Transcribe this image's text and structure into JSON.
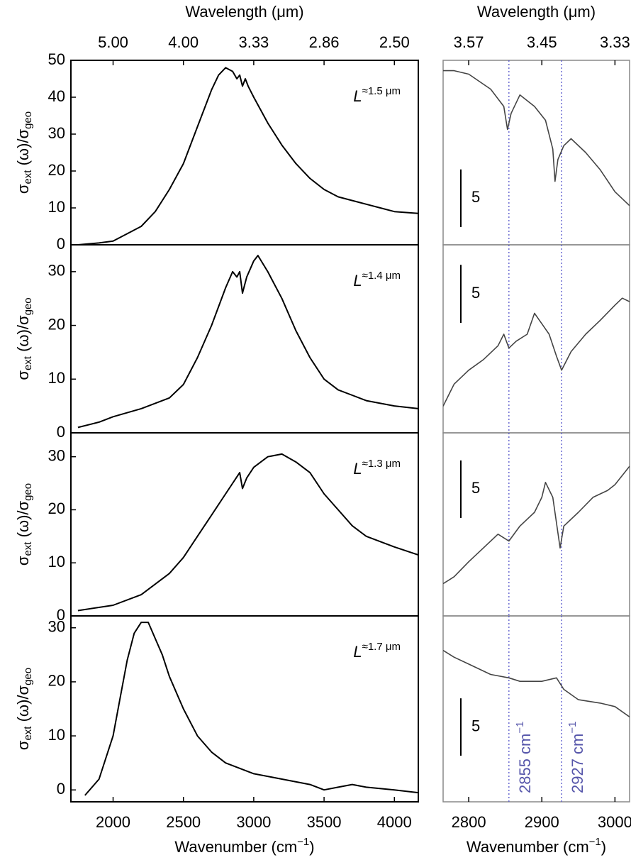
{
  "chart_data": [
    {
      "type": "line",
      "annotation": [
        "L",
        "≈1.5 μm"
      ],
      "ylabel": [
        "σ",
        "ext",
        " (ω)/σ",
        "geo"
      ],
      "x2label": "Wavelength (μm)",
      "x2ticks": [
        {
          "value": 2000,
          "label": "5.00"
        },
        {
          "value": 2500,
          "label": "4.00"
        },
        {
          "value": 3000,
          "label": "3.33"
        },
        {
          "value": 3500,
          "label": "2.86"
        },
        {
          "value": 4000,
          "label": "2.50"
        }
      ],
      "x": [
        1750,
        1900,
        2000,
        2100,
        2200,
        2300,
        2400,
        2500,
        2600,
        2700,
        2750,
        2800,
        2850,
        2880,
        2900,
        2920,
        2940,
        2960,
        3000,
        3100,
        3200,
        3300,
        3400,
        3500,
        3600,
        3700,
        3800,
        3900,
        4000,
        4170
      ],
      "values": [
        0,
        0.5,
        1,
        3,
        5,
        9,
        15,
        22,
        32,
        42,
        46,
        48,
        47,
        45,
        46,
        43,
        45,
        43,
        40,
        33,
        27,
        22,
        18,
        15,
        13,
        12,
        11,
        10,
        9,
        8.5
      ],
      "color": "#000000",
      "xlim": [
        1700,
        4170
      ],
      "ylim": [
        0,
        50
      ],
      "yticks": [
        0,
        10,
        20,
        30,
        40,
        50
      ]
    },
    {
      "type": "line",
      "annotation": [
        "L",
        "≈1.4 μm"
      ],
      "ylabel": [
        "σ",
        "ext",
        " (ω)/σ",
        "geo"
      ],
      "x": [
        1750,
        1900,
        2000,
        2200,
        2400,
        2500,
        2600,
        2700,
        2800,
        2850,
        2880,
        2900,
        2920,
        2950,
        3000,
        3030,
        3100,
        3200,
        3300,
        3400,
        3500,
        3600,
        3700,
        3800,
        3900,
        4000,
        4170
      ],
      "values": [
        1,
        2,
        3,
        4.5,
        6.5,
        9,
        14,
        20,
        27,
        30,
        29,
        30,
        26,
        29,
        32,
        33,
        30,
        25,
        19,
        14,
        10,
        8,
        7,
        6,
        5.5,
        5,
        4.5
      ],
      "color": "#000000",
      "xlim": [
        1700,
        4170
      ],
      "ylim": [
        0,
        35
      ],
      "yticks": [
        0,
        10,
        20,
        30
      ]
    },
    {
      "type": "line",
      "annotation": [
        "L",
        "≈1.3 μm"
      ],
      "ylabel": [
        "σ",
        "ext",
        " (ω)/σ",
        "geo"
      ],
      "x": [
        1750,
        2000,
        2200,
        2400,
        2500,
        2600,
        2700,
        2800,
        2900,
        2920,
        2950,
        3000,
        3100,
        3200,
        3300,
        3400,
        3500,
        3600,
        3700,
        3800,
        3900,
        4000,
        4170
      ],
      "values": [
        1,
        2,
        4,
        8,
        11,
        15,
        19,
        23,
        27,
        24,
        26,
        28,
        30,
        30.5,
        29,
        27,
        23,
        20,
        17,
        15,
        14,
        13,
        11.5
      ],
      "color": "#000000",
      "xlim": [
        1700,
        4170
      ],
      "ylim": [
        0,
        34.5
      ],
      "yticks": [
        0,
        10,
        20,
        30
      ]
    },
    {
      "type": "line",
      "annotation": [
        "L",
        "≈1.7 μm"
      ],
      "ylabel": [
        "σ",
        "ext",
        " (ω)/σ",
        "geo"
      ],
      "xlabel": [
        "Wavenumber (cm",
        "−1",
        ")"
      ],
      "xticks": [
        2000,
        2500,
        3000,
        3500,
        4000
      ],
      "x": [
        1800,
        1900,
        2000,
        2050,
        2100,
        2150,
        2200,
        2250,
        2300,
        2350,
        2400,
        2500,
        2600,
        2700,
        2800,
        3000,
        3200,
        3400,
        3500,
        3600,
        3700,
        3800,
        4000,
        4170
      ],
      "values": [
        -1,
        2,
        10,
        17,
        24,
        29,
        31,
        31,
        28,
        25,
        21,
        15,
        10,
        7,
        5,
        3,
        2,
        1,
        0,
        0.5,
        1,
        0.5,
        0,
        -0.5
      ],
      "color": "#000000",
      "xlim": [
        1700,
        4170
      ],
      "ylim": [
        -2.2,
        32.2
      ],
      "yticks": [
        0,
        10,
        20,
        30
      ]
    },
    {
      "type": "line",
      "x2label": "Wavelength (μm)",
      "x2ticks": [
        {
          "value": 2800,
          "label": "3.57"
        },
        {
          "value": 2900,
          "label": "3.45"
        },
        {
          "value": 3000,
          "label": "3.33"
        }
      ],
      "x": [
        2765,
        2780,
        2800,
        2830,
        2848,
        2853,
        2858,
        2870,
        2890,
        2905,
        2915,
        2918,
        2922,
        2930,
        2940,
        2960,
        2980,
        3000,
        3020
      ],
      "values": [
        15.1,
        15.1,
        14.8,
        13.5,
        12,
        10,
        11.4,
        13,
        12,
        10.8,
        8.3,
        5.5,
        7.4,
        8.6,
        9.2,
        8,
        6.5,
        4.6,
        3.4
      ],
      "color": "#444444",
      "xlim": [
        2765,
        3020
      ],
      "ylim": [
        0,
        16
      ],
      "scale_bar": 5,
      "vlines": [
        2855,
        2927
      ]
    },
    {
      "type": "line",
      "x": [
        2765,
        2780,
        2800,
        2820,
        2840,
        2848,
        2855,
        2865,
        2880,
        2890,
        2900,
        2910,
        2920,
        2927,
        2940,
        2960,
        2980,
        3000,
        3010,
        3020
      ],
      "values": [
        2.3,
        4.2,
        5.4,
        6.3,
        7.5,
        8.5,
        7.3,
        7.9,
        8.5,
        10.3,
        9.4,
        8.5,
        6.6,
        5.4,
        7,
        8.5,
        9.7,
        11,
        11.6,
        11.3
      ],
      "color": "#444444",
      "xlim": [
        2765,
        3020
      ],
      "ylim": [
        0,
        16.2
      ],
      "scale_bar": 5,
      "vlines": [
        2855,
        2927
      ]
    },
    {
      "type": "line",
      "x": [
        2765,
        2780,
        2800,
        2820,
        2840,
        2855,
        2870,
        2890,
        2900,
        2905,
        2915,
        2925,
        2930,
        2950,
        2970,
        2990,
        3000,
        3020
      ],
      "values": [
        2.8,
        3.4,
        4.7,
        5.9,
        7.1,
        6.5,
        7.8,
        9,
        10.3,
        11.6,
        10.3,
        5.9,
        7.8,
        9,
        10.3,
        10.9,
        11.4,
        13
      ],
      "color": "#444444",
      "xlim": [
        2765,
        3020
      ],
      "ylim": [
        0,
        15.9
      ],
      "scale_bar": 5,
      "vlines": [
        2855,
        2927
      ]
    },
    {
      "type": "line",
      "xlabel": [
        "Wavenumber (cm",
        "−1",
        ")"
      ],
      "xticks": [
        2800,
        2900,
        3000
      ],
      "x": [
        2765,
        2780,
        2800,
        2830,
        2855,
        2870,
        2900,
        2920,
        2930,
        2950,
        2980,
        3000,
        3020
      ],
      "values": [
        13.2,
        12.6,
        12,
        11.1,
        10.8,
        10.5,
        10.5,
        10.8,
        9.8,
        8.9,
        8.6,
        8.3,
        7.4
      ],
      "color": "#444444",
      "xlim": [
        2765,
        3020
      ],
      "ylim": [
        0,
        16.2
      ],
      "scale_bar": 5,
      "vlines": [
        2855,
        2927
      ],
      "vline_labels": [
        [
          "2855 cm",
          "−1"
        ],
        [
          "2927 cm",
          "−1"
        ]
      ]
    }
  ]
}
